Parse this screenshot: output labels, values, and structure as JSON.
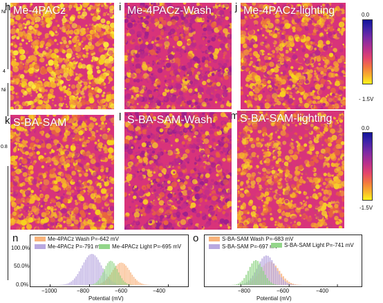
{
  "panels": {
    "h": {
      "letter": "h",
      "title": "Me-4PACz"
    },
    "i": {
      "letter": "i",
      "title": "Me-4PACz-Wash"
    },
    "j": {
      "letter": "j",
      "title": "Me-4PACz-lighting"
    },
    "k": {
      "letter": "k",
      "title": "S-BA-SAM"
    },
    "l": {
      "letter": "l",
      "title": "S-BA-SAM-Wash"
    },
    "m": {
      "letter": "m",
      "title": "S-BA-SAM-lighting"
    }
  },
  "colorbars": [
    {
      "top_label": "0.0",
      "bottom_label": "- 1.5V"
    },
    {
      "top_label": "0.0",
      "bottom_label": "-1.5V"
    }
  ],
  "left_fragments": {
    "a": "Ni",
    "b": "4",
    "c": "Ni",
    "d": "0.8"
  },
  "chart_data": [
    {
      "panel": "n",
      "type": "area",
      "xlabel": "Potential (mV)",
      "xticks": [
        "−1000",
        "−800",
        "−600",
        "−400"
      ],
      "xlim": [
        -1100,
        -300
      ],
      "yticks": [
        "0.0%",
        "50.0%",
        "100.0%"
      ],
      "ylim": [
        0,
        1.2
      ],
      "legend": [
        {
          "label": "Me-4PACz Wash P=-642 mV",
          "color": "#f9b27a"
        },
        {
          "label": "Me-4PACz P=-791 mV",
          "color": "#b8a8e0"
        },
        {
          "label": "Me-4PACz Light P=-695 mV",
          "color": "#93d68a"
        }
      ],
      "series": [
        {
          "name": "Me-4PACz Wash P=-642 mV",
          "center": -642,
          "sigma": 45,
          "peak": 0.72,
          "color": "#f9b27a"
        },
        {
          "name": "Me-4PACz P=-791 mV",
          "center": -791,
          "sigma": 50,
          "peak": 1.0,
          "color": "#b8a8e0"
        },
        {
          "name": "Me-4PACz Light P=-695 mV",
          "center": -695,
          "sigma": 35,
          "peak": 0.78,
          "color": "#93d68a"
        }
      ]
    },
    {
      "panel": "o",
      "type": "area",
      "xlabel": "Potential (mV)",
      "xticks": [
        "−800",
        "−600",
        "−400"
      ],
      "xlim": [
        -950,
        -300
      ],
      "yticks": [],
      "ylim": [
        0,
        1.2
      ],
      "legend": [
        {
          "label": "S-BA-SAM Wash P=-683 mV",
          "color": "#f9b27a"
        },
        {
          "label": "S-BA-SAM P=-697 mV",
          "color": "#b8a8e0"
        },
        {
          "label": "S-BA-SAM Light P=-741 mV",
          "color": "#93d68a"
        }
      ],
      "series": [
        {
          "name": "S-BA-SAM Wash P=-683 mV",
          "center": -683,
          "sigma": 40,
          "peak": 0.75,
          "color": "#f9b27a"
        },
        {
          "name": "S-BA-SAM P=-697 mV",
          "center": -697,
          "sigma": 38,
          "peak": 0.95,
          "color": "#b8a8e0"
        },
        {
          "name": "S-BA-SAM Light P=-741 mV",
          "center": -741,
          "sigma": 30,
          "peak": 0.8,
          "color": "#93d68a"
        }
      ]
    }
  ]
}
